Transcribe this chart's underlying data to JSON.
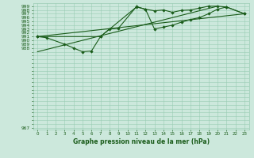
{
  "title": "Graphe pression niveau de la mer (hPa)",
  "bg_color": "#cce8dc",
  "grid_color": "#99ccb3",
  "line_color": "#1a5c1a",
  "xlim": [
    -0.5,
    23.5
  ],
  "ylim": [
    966.5,
    999.8
  ],
  "ytick_vals": [
    967,
    988,
    989,
    990,
    991,
    992,
    993,
    994,
    995,
    996,
    997,
    998,
    999
  ],
  "xtick_vals": [
    0,
    1,
    2,
    3,
    4,
    5,
    6,
    7,
    8,
    9,
    10,
    11,
    12,
    13,
    14,
    15,
    16,
    17,
    18,
    19,
    20,
    21,
    22,
    23
  ],
  "line1_x": [
    0,
    1,
    3,
    4,
    5,
    6,
    7,
    8,
    9,
    11,
    12,
    13,
    14,
    15,
    16,
    17,
    18,
    19,
    20,
    21,
    23
  ],
  "line1_y": [
    991.0,
    990.7,
    989.0,
    988.0,
    987.0,
    987.2,
    991.0,
    993.0,
    993.2,
    998.9,
    998.2,
    997.8,
    998.0,
    997.4,
    997.9,
    998.0,
    998.5,
    999.0,
    999.0,
    998.8,
    997.0
  ],
  "line2_x": [
    0,
    7,
    11,
    12,
    13,
    14,
    15,
    16,
    17,
    18,
    19,
    20,
    21,
    23
  ],
  "line2_y": [
    991.0,
    991.0,
    998.8,
    998.2,
    993.0,
    993.5,
    994.0,
    994.8,
    995.5,
    996.0,
    997.0,
    998.2,
    998.8,
    997.0
  ],
  "line3_x": [
    0,
    23
  ],
  "line3_y": [
    991.0,
    997.0
  ],
  "line4_x": [
    0,
    20
  ],
  "line4_y": [
    987.0,
    999.0
  ]
}
